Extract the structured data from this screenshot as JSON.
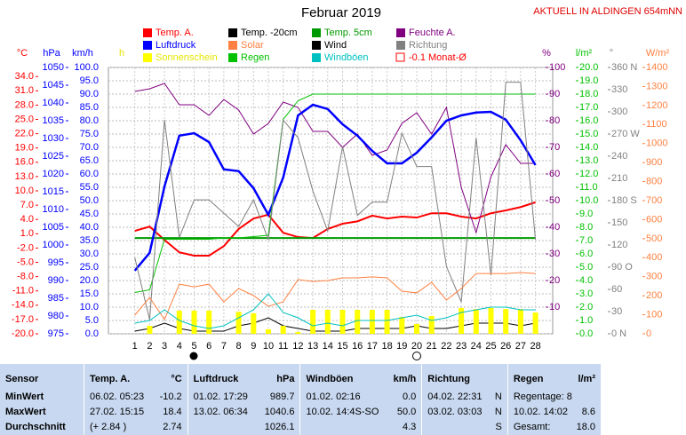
{
  "chart_data": {
    "type": "line",
    "title": "Februar 2019",
    "subtitle": "AKTUELL IN ALDINGEN 654mNN",
    "categories": [
      "1",
      "2",
      "3",
      "4",
      "5",
      "6",
      "7",
      "8",
      "9",
      "10",
      "11",
      "12",
      "13",
      "14",
      "15",
      "16",
      "17",
      "18",
      "19",
      "20",
      "21",
      "22",
      "23",
      "24",
      "25",
      "26",
      "27",
      "28"
    ],
    "axes": [
      {
        "label": "°C",
        "color": "#ff0000",
        "side": "left",
        "lim": [
          -20,
          35.9
        ],
        "ticks": [
          {
            "value": 34,
            "label": "34.0"
          },
          {
            "value": 31,
            "label": "31.0"
          },
          {
            "value": 28,
            "label": "28.0"
          },
          {
            "value": 25,
            "label": "25.0"
          },
          {
            "value": 22,
            "label": "22.0"
          },
          {
            "value": 19,
            "label": "19.0"
          },
          {
            "value": 16,
            "label": "16.0"
          },
          {
            "value": 13,
            "label": "13.0"
          },
          {
            "value": 10,
            "label": "10.0"
          },
          {
            "value": 7,
            "label": "7.0"
          },
          {
            "value": 4,
            "label": "4.0"
          },
          {
            "value": 1,
            "label": "1.0"
          },
          {
            "value": -2,
            "label": "-2.0"
          },
          {
            "value": -5,
            "label": "-5.0"
          },
          {
            "value": -8,
            "label": "-8.0"
          },
          {
            "value": -11,
            "label": "-11.0"
          },
          {
            "value": -14,
            "label": "-14.0"
          },
          {
            "value": -17,
            "label": "-17.0"
          },
          {
            "value": -20,
            "label": "-20.0"
          }
        ]
      },
      {
        "label": "hPa",
        "color": "#0000ff",
        "side": "left",
        "lim": [
          975,
          1050
        ],
        "ticks": [
          1050,
          1045,
          1040,
          1035,
          1030,
          1025,
          1020,
          1015,
          1010,
          1005,
          1000,
          995,
          990,
          985,
          980,
          975
        ]
      },
      {
        "label": "km/h",
        "color": "#0000ff",
        "side": "left",
        "lim": [
          0,
          100
        ],
        "grid": true,
        "ticks": [
          {
            "value": 100,
            "label": "100.0"
          },
          {
            "value": 95,
            "label": "95.0"
          },
          {
            "value": 90,
            "label": "90.0"
          },
          {
            "value": 85,
            "label": "85.0"
          },
          {
            "value": 80,
            "label": "80.0"
          },
          {
            "value": 75,
            "label": "75.0"
          },
          {
            "value": 70,
            "label": "70.0"
          },
          {
            "value": 65,
            "label": "65.0"
          },
          {
            "value": 60,
            "label": "60.0"
          },
          {
            "value": 55,
            "label": "55.0"
          },
          {
            "value": 50,
            "label": "50.0"
          },
          {
            "value": 45,
            "label": "45.0"
          },
          {
            "value": 40,
            "label": "40.0"
          },
          {
            "value": 35,
            "label": "35.0"
          },
          {
            "value": 30,
            "label": "30.0"
          },
          {
            "value": 25,
            "label": "25.0"
          },
          {
            "value": 20,
            "label": "20.0"
          },
          {
            "value": 15,
            "label": "15.0"
          },
          {
            "value": 10,
            "label": "10.0"
          },
          {
            "value": 5,
            "label": "5.0"
          },
          {
            "value": 0,
            "label": "0.0"
          }
        ]
      },
      {
        "label": "h",
        "color": "#e6e600",
        "side": "left",
        "lim": [
          0,
          100
        ],
        "ticks": []
      },
      {
        "label": "%",
        "color": "#800080",
        "side": "right",
        "lim": [
          0,
          100
        ],
        "ticks": [
          100,
          90,
          80,
          70,
          60,
          50,
          40,
          30,
          20,
          10
        ]
      },
      {
        "label": "l/m²",
        "color": "#00c000",
        "side": "right",
        "lim": [
          0,
          20
        ],
        "ticks": [
          {
            "value": 20,
            "label": "20.0"
          },
          {
            "value": 19,
            "label": "19.0"
          },
          {
            "value": 18,
            "label": "18.0"
          },
          {
            "value": 17,
            "label": "17.0"
          },
          {
            "value": 16,
            "label": "16.0"
          },
          {
            "value": 15,
            "label": "15.0"
          },
          {
            "value": 14,
            "label": "14.0"
          },
          {
            "value": 13,
            "label": "13.0"
          },
          {
            "value": 12,
            "label": "12.0"
          },
          {
            "value": 11,
            "label": "11.0"
          },
          {
            "value": 10,
            "label": "10.0"
          },
          {
            "value": 9,
            "label": "9.0"
          },
          {
            "value": 8,
            "label": "8.0"
          },
          {
            "value": 7,
            "label": "7.0"
          },
          {
            "value": 6,
            "label": "6.0"
          },
          {
            "value": 5,
            "label": "5.0"
          },
          {
            "value": 4,
            "label": "4.0"
          },
          {
            "value": 3,
            "label": "3.0"
          },
          {
            "value": 2,
            "label": "2.0"
          },
          {
            "value": 1,
            "label": "1.0"
          },
          {
            "value": 0,
            "label": "0.0"
          }
        ]
      },
      {
        "label": "°",
        "color": "#808080",
        "side": "right",
        "lim": [
          0,
          360
        ],
        "ticks": [
          {
            "value": 360,
            "label": "360 N"
          },
          330,
          300,
          {
            "value": 270,
            "label": "270 W"
          },
          240,
          210,
          {
            "value": 180,
            "label": "180 S"
          },
          150,
          120,
          {
            "value": 90,
            "label": "90 O"
          },
          60,
          30,
          {
            "value": 0,
            "label": "0 N"
          }
        ]
      },
      {
        "label": "W/m²",
        "color": "#ff8040",
        "side": "right",
        "lim": [
          0,
          1400
        ],
        "ticks": [
          1400,
          1300,
          1200,
          1100,
          1000,
          900,
          800,
          700,
          600,
          500,
          400,
          300,
          200,
          100,
          0
        ]
      }
    ],
    "series": [
      {
        "name": "Temp. A.",
        "color": "#ff0000",
        "axis": 0,
        "kind": "line",
        "width": 2,
        "values": [
          1.6,
          2.5,
          -0.3,
          -2.9,
          -3.6,
          -3.6,
          -1.6,
          2.0,
          4.2,
          5.0,
          1.2,
          0.3,
          0.1,
          2.0,
          3.1,
          3.6,
          4.8,
          4.2,
          4.6,
          4.4,
          5.3,
          5.3,
          4.6,
          4.2,
          5.3,
          5.9,
          6.6,
          7.6
        ]
      },
      {
        "name": "Temp. -20cm",
        "color": "#000000",
        "axis": 0,
        "kind": "line"
      },
      {
        "name": "Temp. 5cm",
        "color": "#009900",
        "axis": 0,
        "kind": "line",
        "width": 2,
        "values": [
          0.1,
          0.1,
          0.1,
          0.1,
          0.1,
          0.1,
          0.1,
          0.1,
          0.1,
          0.1,
          0.1,
          0.1,
          0.1,
          0.1,
          0.1,
          0.1,
          0.1,
          0.1,
          0.1,
          0.1,
          0.1,
          0.1,
          0.1,
          0.1,
          0.1,
          0.1,
          0.1,
          0.1
        ]
      },
      {
        "name": "Feuchte A.",
        "color": "#800080",
        "axis": 4,
        "kind": "line",
        "width": 1,
        "values": [
          91,
          92,
          94,
          86,
          86,
          82,
          88,
          84,
          75,
          79,
          87,
          85,
          76,
          76,
          70,
          75,
          67,
          69,
          79,
          83,
          75,
          85,
          55,
          38,
          59,
          71,
          64,
          64
        ]
      },
      {
        "name": "Luftdruck",
        "color": "#0000ff",
        "axis": 1,
        "kind": "line",
        "width": 2.5,
        "values": [
          992.8,
          997.8,
          1016.5,
          1030.8,
          1031.5,
          1029.0,
          1021.3,
          1020.8,
          1016.0,
          1008.5,
          1019.0,
          1036.5,
          1039.5,
          1038.3,
          1034.0,
          1030.8,
          1026.5,
          1023.0,
          1023.0,
          1026.0,
          1030.3,
          1035.0,
          1036.5,
          1037.3,
          1037.5,
          1035.3,
          1029.5,
          1022.5
        ]
      },
      {
        "name": "Regen",
        "color": "#00c000",
        "axis": 5,
        "kind": "line",
        "width": 1,
        "values": [
          3.1,
          3.3,
          7.1,
          7.1,
          7.1,
          7.1,
          7.2,
          7.2,
          7.3,
          7.4,
          16.1,
          17.5,
          18.0,
          18.0,
          18.0,
          18.0,
          18.0,
          18.0,
          18.0,
          18.0,
          18.0,
          18.0,
          18.0,
          18.0,
          18.0,
          18.0,
          18.0,
          18.0
        ]
      },
      {
        "name": "Wind",
        "color": "#000000",
        "axis": 2,
        "kind": "line",
        "width": 1,
        "values": [
          1,
          2,
          4,
          2,
          1,
          1,
          1,
          3,
          4,
          6,
          3,
          2,
          1,
          1,
          1,
          2,
          2,
          2,
          2,
          3,
          2,
          2,
          3,
          4,
          4,
          4,
          3,
          4
        ]
      },
      {
        "name": "Richtung",
        "color": "#808080",
        "axis": 6,
        "kind": "line",
        "width": 1,
        "values": [
          103,
          19,
          289,
          130,
          181,
          181,
          163,
          145,
          181,
          127,
          289,
          265,
          193,
          139,
          253,
          160,
          178,
          178,
          271,
          226,
          226,
          91,
          43,
          265,
          79,
          340,
          340,
          127
        ]
      },
      {
        "name": "Sonnenschein",
        "color": "#ffff00",
        "axis": 3,
        "kind": "bar",
        "values": [
          0,
          3,
          0,
          8.7,
          8.7,
          8.7,
          0,
          8.3,
          7.7,
          1.7,
          3,
          0.7,
          9,
          9,
          9,
          9,
          9,
          9,
          6.3,
          3.7,
          6.7,
          0,
          9.7,
          9.3,
          9.7,
          9.3,
          9.3,
          8
        ]
      },
      {
        "name": "Solar",
        "color": "#ff8040",
        "axis": 7,
        "kind": "line",
        "width": 1,
        "values": [
          98,
          191,
          75,
          261,
          247,
          261,
          168,
          238,
          201,
          145,
          168,
          285,
          275,
          280,
          294,
          294,
          299,
          294,
          224,
          215,
          271,
          177,
          238,
          317,
          317,
          317,
          322,
          317
        ]
      },
      {
        "name": "Windböen",
        "color": "#00c0c0",
        "axis": 2,
        "kind": "line",
        "width": 1,
        "values": [
          4,
          5,
          9,
          5,
          3,
          2,
          3,
          6,
          9,
          15,
          8,
          6,
          3,
          4,
          3,
          5,
          5,
          5,
          6,
          7,
          5,
          6,
          8,
          9,
          10,
          10,
          9,
          9
        ]
      },
      {
        "name": "-0.1 Monat-Ø",
        "color": "#ff0000",
        "kind": "outline"
      }
    ]
  },
  "table": {
    "header": [
      [
        "Sensor"
      ],
      [
        "Temp. A.",
        "°C"
      ],
      [
        "Luftdruck",
        "hPa"
      ],
      [
        "Windböen",
        "km/h"
      ],
      [
        "Richtung"
      ],
      [
        "Regen",
        "l/m²"
      ]
    ],
    "rows": [
      [
        [
          "MinWert"
        ],
        [
          "06.02.  05:23",
          "-10.2"
        ],
        [
          "01.02.  17:29",
          "989.7"
        ],
        [
          "01.02.  02:16",
          "0.0"
        ],
        [
          "04.02.  22:31",
          "N"
        ],
        [
          "Regentage: 8"
        ]
      ],
      [
        [
          "MaxWert"
        ],
        [
          "27.02.  15:15",
          "18.4"
        ],
        [
          "13.02.  06:34",
          "1040.6"
        ],
        [
          "10.02.  14:4S-SO",
          "50.0"
        ],
        [
          "03.02.  03:03",
          "N"
        ],
        [
          "10.02.  14:02",
          "8.6"
        ]
      ],
      [
        [
          "Durchschnitt"
        ],
        [
          "(+ 2.84 )",
          "2.74"
        ],
        [
          "",
          "1026.1"
        ],
        [
          "",
          "4.3"
        ],
        [
          "",
          "S"
        ],
        [
          "Gesamt:",
          "18.0"
        ]
      ]
    ]
  }
}
